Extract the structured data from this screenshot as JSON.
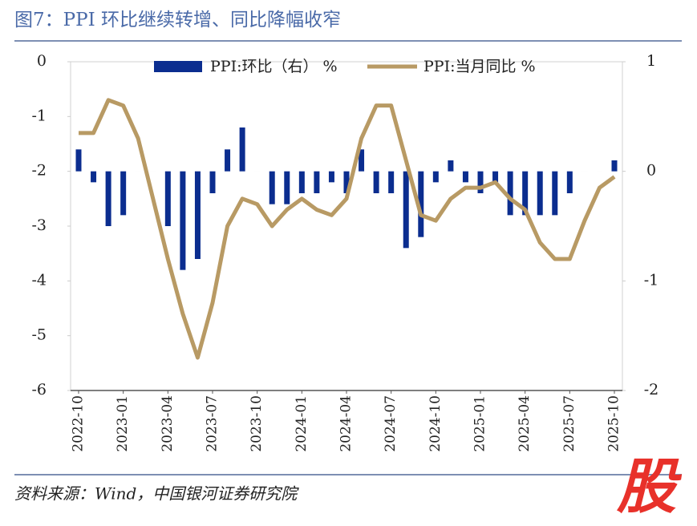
{
  "title": "图7：PPI 环比继续转增、同比降幅收窄",
  "source": "资料来源：Wind，中国银河证券研究院",
  "watermark": "股",
  "chart_data": {
    "type": "bar-line",
    "categories": [
      "2022-10",
      null,
      null,
      "2023-01",
      null,
      null,
      "2023-04",
      null,
      null,
      "2023-07",
      null,
      null,
      "2023-10",
      null,
      null,
      "2024-01",
      null,
      null,
      "2024-04",
      null,
      null,
      "2024-07",
      null,
      null,
      "2024-10",
      null,
      null,
      "2025-01",
      null,
      null,
      "2025-04",
      null,
      null,
      "2025-07",
      null,
      null,
      "2025-10"
    ],
    "series": [
      {
        "name": "PPI:环比（右） %",
        "type": "bar",
        "axis": "y2",
        "color": "#0b2d8f",
        "values": [
          0.2,
          -0.1,
          -0.5,
          -0.4,
          0.0,
          0.0,
          -0.5,
          -0.9,
          -0.8,
          -0.2,
          0.2,
          0.4,
          0.0,
          -0.3,
          -0.3,
          -0.2,
          -0.2,
          -0.1,
          -0.2,
          0.2,
          -0.2,
          -0.2,
          -0.7,
          -0.6,
          -0.1,
          0.1,
          -0.1,
          -0.2,
          -0.1,
          -0.4,
          -0.4,
          -0.4,
          -0.4,
          -0.2,
          0.0,
          0.0,
          0.1
        ]
      },
      {
        "name": "PPI:当月同比 %",
        "type": "line",
        "color": "#b89a64",
        "values": [
          -1.3,
          -1.3,
          -0.7,
          -0.8,
          -1.4,
          -2.5,
          -3.6,
          -4.6,
          -5.4,
          -4.4,
          -3.0,
          -2.5,
          -2.6,
          -3.0,
          -2.7,
          -2.5,
          -2.7,
          -2.8,
          -2.5,
          -1.4,
          -0.8,
          -0.8,
          -1.8,
          -2.8,
          -2.9,
          -2.5,
          -2.3,
          -2.3,
          -2.2,
          -2.5,
          -2.7,
          -3.3,
          -3.6,
          -3.6,
          -2.9,
          -2.3,
          -2.1
        ]
      }
    ],
    "ylim": [
      -6,
      0
    ],
    "yticks": [
      0,
      -1,
      -2,
      -3,
      -4,
      -5,
      -6
    ],
    "y2lim": [
      -2,
      1
    ],
    "y2ticks": [
      1,
      0,
      -1,
      -2
    ],
    "legend": "top"
  }
}
